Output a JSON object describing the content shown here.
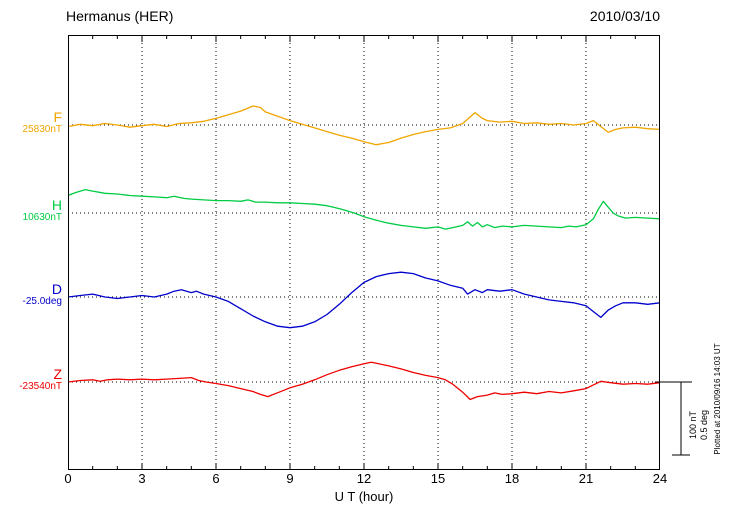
{
  "header": {
    "title": "Hermanus (HER)",
    "date": "2010/03/10"
  },
  "chart_data": {
    "type": "line",
    "title": "Hermanus (HER)",
    "date": "2010/03/10",
    "xlabel": "U T (hour)",
    "xlim": [
      0,
      24
    ],
    "x_ticks": [
      0,
      3,
      6,
      9,
      12,
      15,
      18,
      21,
      24
    ],
    "grid": "dotted vertical lines every 3 hours; dotted horizontal baseline per component",
    "legend_position": "left-of-traces",
    "scale_bar": {
      "nt_label": "100 nT",
      "deg_label": "0.5 deg",
      "nt_value": 100,
      "deg_value": 0.5
    },
    "footer": "Plotted at 2010/09/16 14:03 UT",
    "series": [
      {
        "name": "F",
        "baseline_label": "25830nT",
        "unit": "nT",
        "color": "#f0a500",
        "points": [
          [
            0,
            -2
          ],
          [
            0.5,
            1
          ],
          [
            1,
            -1
          ],
          [
            1.5,
            2
          ],
          [
            2,
            0
          ],
          [
            2.5,
            -3
          ],
          [
            3,
            -1
          ],
          [
            3.5,
            1
          ],
          [
            4,
            -2
          ],
          [
            4.5,
            2
          ],
          [
            5,
            3
          ],
          [
            5.5,
            5
          ],
          [
            6,
            9
          ],
          [
            6.5,
            14
          ],
          [
            7,
            19
          ],
          [
            7.5,
            26
          ],
          [
            7.8,
            24
          ],
          [
            8,
            18
          ],
          [
            8.5,
            12
          ],
          [
            9,
            6
          ],
          [
            9.5,
            1
          ],
          [
            10,
            -4
          ],
          [
            10.5,
            -9
          ],
          [
            11,
            -14
          ],
          [
            11.5,
            -18
          ],
          [
            12,
            -23
          ],
          [
            12.5,
            -27
          ],
          [
            13,
            -24
          ],
          [
            13.5,
            -18
          ],
          [
            14,
            -13
          ],
          [
            14.5,
            -9
          ],
          [
            15,
            -6
          ],
          [
            15.5,
            -4
          ],
          [
            16,
            2
          ],
          [
            16.3,
            11
          ],
          [
            16.5,
            17
          ],
          [
            16.8,
            9
          ],
          [
            17,
            6
          ],
          [
            17.5,
            4
          ],
          [
            18,
            5
          ],
          [
            18.5,
            2
          ],
          [
            19,
            3
          ],
          [
            19.5,
            1
          ],
          [
            20,
            2
          ],
          [
            20.5,
            0
          ],
          [
            21,
            2
          ],
          [
            21.3,
            6
          ],
          [
            21.6,
            -2
          ],
          [
            21.9,
            -10
          ],
          [
            22.2,
            -6
          ],
          [
            22.5,
            -4
          ],
          [
            23,
            -3
          ],
          [
            23.5,
            -5
          ],
          [
            24,
            -6
          ]
        ]
      },
      {
        "name": "H",
        "baseline_label": "10630nT",
        "unit": "nT",
        "color": "#00cc44",
        "points": [
          [
            0,
            24
          ],
          [
            0.3,
            28
          ],
          [
            0.7,
            32
          ],
          [
            1,
            30
          ],
          [
            1.5,
            27
          ],
          [
            2,
            26
          ],
          [
            2.5,
            24
          ],
          [
            3,
            23
          ],
          [
            3.5,
            22
          ],
          [
            4,
            21
          ],
          [
            4.3,
            23
          ],
          [
            4.7,
            20
          ],
          [
            5,
            19
          ],
          [
            5.5,
            18
          ],
          [
            6,
            17
          ],
          [
            6.5,
            17
          ],
          [
            7,
            16
          ],
          [
            7.3,
            18
          ],
          [
            7.6,
            15
          ],
          [
            8,
            15
          ],
          [
            8.5,
            14
          ],
          [
            9,
            14
          ],
          [
            9.5,
            13
          ],
          [
            10,
            12
          ],
          [
            10.5,
            10
          ],
          [
            11,
            6
          ],
          [
            11.3,
            3
          ],
          [
            11.6,
            0
          ],
          [
            12,
            -5
          ],
          [
            12.5,
            -10
          ],
          [
            13,
            -14
          ],
          [
            13.5,
            -17
          ],
          [
            14,
            -19
          ],
          [
            14.5,
            -21
          ],
          [
            15,
            -19
          ],
          [
            15.3,
            -22
          ],
          [
            15.6,
            -20
          ],
          [
            16,
            -17
          ],
          [
            16.2,
            -12
          ],
          [
            16.4,
            -18
          ],
          [
            16.6,
            -13
          ],
          [
            16.8,
            -19
          ],
          [
            17,
            -16
          ],
          [
            17.3,
            -20
          ],
          [
            17.6,
            -18
          ],
          [
            18,
            -19
          ],
          [
            18.5,
            -17
          ],
          [
            19,
            -18
          ],
          [
            19.5,
            -19
          ],
          [
            20,
            -20
          ],
          [
            20.3,
            -18
          ],
          [
            20.6,
            -19
          ],
          [
            21,
            -16
          ],
          [
            21.3,
            -8
          ],
          [
            21.5,
            5
          ],
          [
            21.7,
            16
          ],
          [
            21.9,
            8
          ],
          [
            22.1,
            0
          ],
          [
            22.3,
            -4
          ],
          [
            22.6,
            -7
          ],
          [
            23,
            -6
          ],
          [
            23.5,
            -7
          ],
          [
            24,
            -8
          ]
        ]
      },
      {
        "name": "D",
        "baseline_label": "-25.0deg",
        "unit": "deg",
        "color": "#0000cc",
        "points": [
          [
            0,
            0.0
          ],
          [
            0.5,
            0.01
          ],
          [
            1,
            0.02
          ],
          [
            1.5,
            0.0
          ],
          [
            2,
            -0.01
          ],
          [
            2.5,
            0.0
          ],
          [
            3,
            0.01
          ],
          [
            3.5,
            0.0
          ],
          [
            4,
            0.02
          ],
          [
            4.3,
            0.04
          ],
          [
            4.6,
            0.05
          ],
          [
            5,
            0.03
          ],
          [
            5.2,
            0.04
          ],
          [
            5.5,
            0.02
          ],
          [
            6,
            0.0
          ],
          [
            6.5,
            -0.03
          ],
          [
            7,
            -0.08
          ],
          [
            7.5,
            -0.13
          ],
          [
            8,
            -0.17
          ],
          [
            8.5,
            -0.2
          ],
          [
            9,
            -0.21
          ],
          [
            9.5,
            -0.2
          ],
          [
            10,
            -0.17
          ],
          [
            10.5,
            -0.12
          ],
          [
            11,
            -0.05
          ],
          [
            11.5,
            0.03
          ],
          [
            12,
            0.1
          ],
          [
            12.5,
            0.14
          ],
          [
            13,
            0.16
          ],
          [
            13.5,
            0.17
          ],
          [
            14,
            0.16
          ],
          [
            14.5,
            0.13
          ],
          [
            15,
            0.11
          ],
          [
            15.5,
            0.08
          ],
          [
            16,
            0.06
          ],
          [
            16.2,
            0.02
          ],
          [
            16.5,
            0.05
          ],
          [
            16.8,
            0.03
          ],
          [
            17,
            0.05
          ],
          [
            17.5,
            0.04
          ],
          [
            18,
            0.05
          ],
          [
            18.5,
            0.02
          ],
          [
            19,
            0.0
          ],
          [
            19.5,
            -0.02
          ],
          [
            20,
            -0.03
          ],
          [
            20.5,
            -0.04
          ],
          [
            21,
            -0.06
          ],
          [
            21.3,
            -0.1
          ],
          [
            21.6,
            -0.14
          ],
          [
            21.9,
            -0.09
          ],
          [
            22.2,
            -0.06
          ],
          [
            22.5,
            -0.04
          ],
          [
            23,
            -0.04
          ],
          [
            23.5,
            -0.05
          ],
          [
            24,
            -0.04
          ]
        ]
      },
      {
        "name": "Z",
        "baseline_label": "-23540nT",
        "unit": "nT",
        "color": "#ee0000",
        "points": [
          [
            0,
            0
          ],
          [
            0.5,
            2
          ],
          [
            1,
            3
          ],
          [
            1.3,
            1
          ],
          [
            1.6,
            3
          ],
          [
            2,
            4
          ],
          [
            2.5,
            3
          ],
          [
            3,
            4
          ],
          [
            3.5,
            3
          ],
          [
            4,
            4
          ],
          [
            4.5,
            5
          ],
          [
            5,
            6
          ],
          [
            5.3,
            2
          ],
          [
            5.6,
            0
          ],
          [
            6,
            -2
          ],
          [
            6.5,
            -5
          ],
          [
            7,
            -9
          ],
          [
            7.5,
            -13
          ],
          [
            7.8,
            -17
          ],
          [
            8.1,
            -20
          ],
          [
            8.4,
            -16
          ],
          [
            8.7,
            -12
          ],
          [
            9,
            -8
          ],
          [
            9.5,
            -3
          ],
          [
            10,
            3
          ],
          [
            10.5,
            10
          ],
          [
            11,
            16
          ],
          [
            11.5,
            21
          ],
          [
            12,
            25
          ],
          [
            12.3,
            27
          ],
          [
            12.6,
            25
          ],
          [
            13,
            22
          ],
          [
            13.5,
            18
          ],
          [
            14,
            13
          ],
          [
            14.5,
            9
          ],
          [
            15,
            6
          ],
          [
            15.3,
            3
          ],
          [
            15.6,
            -3
          ],
          [
            16,
            -14
          ],
          [
            16.3,
            -24
          ],
          [
            16.6,
            -20
          ],
          [
            17,
            -18
          ],
          [
            17.3,
            -15
          ],
          [
            17.6,
            -17
          ],
          [
            18,
            -16
          ],
          [
            18.5,
            -14
          ],
          [
            19,
            -16
          ],
          [
            19.5,
            -13
          ],
          [
            20,
            -15
          ],
          [
            20.5,
            -12
          ],
          [
            21,
            -9
          ],
          [
            21.3,
            -4
          ],
          [
            21.6,
            1
          ],
          [
            22,
            -1
          ],
          [
            22.5,
            -3
          ],
          [
            23,
            -2
          ],
          [
            23.5,
            -3
          ],
          [
            24,
            -1
          ]
        ]
      }
    ]
  }
}
